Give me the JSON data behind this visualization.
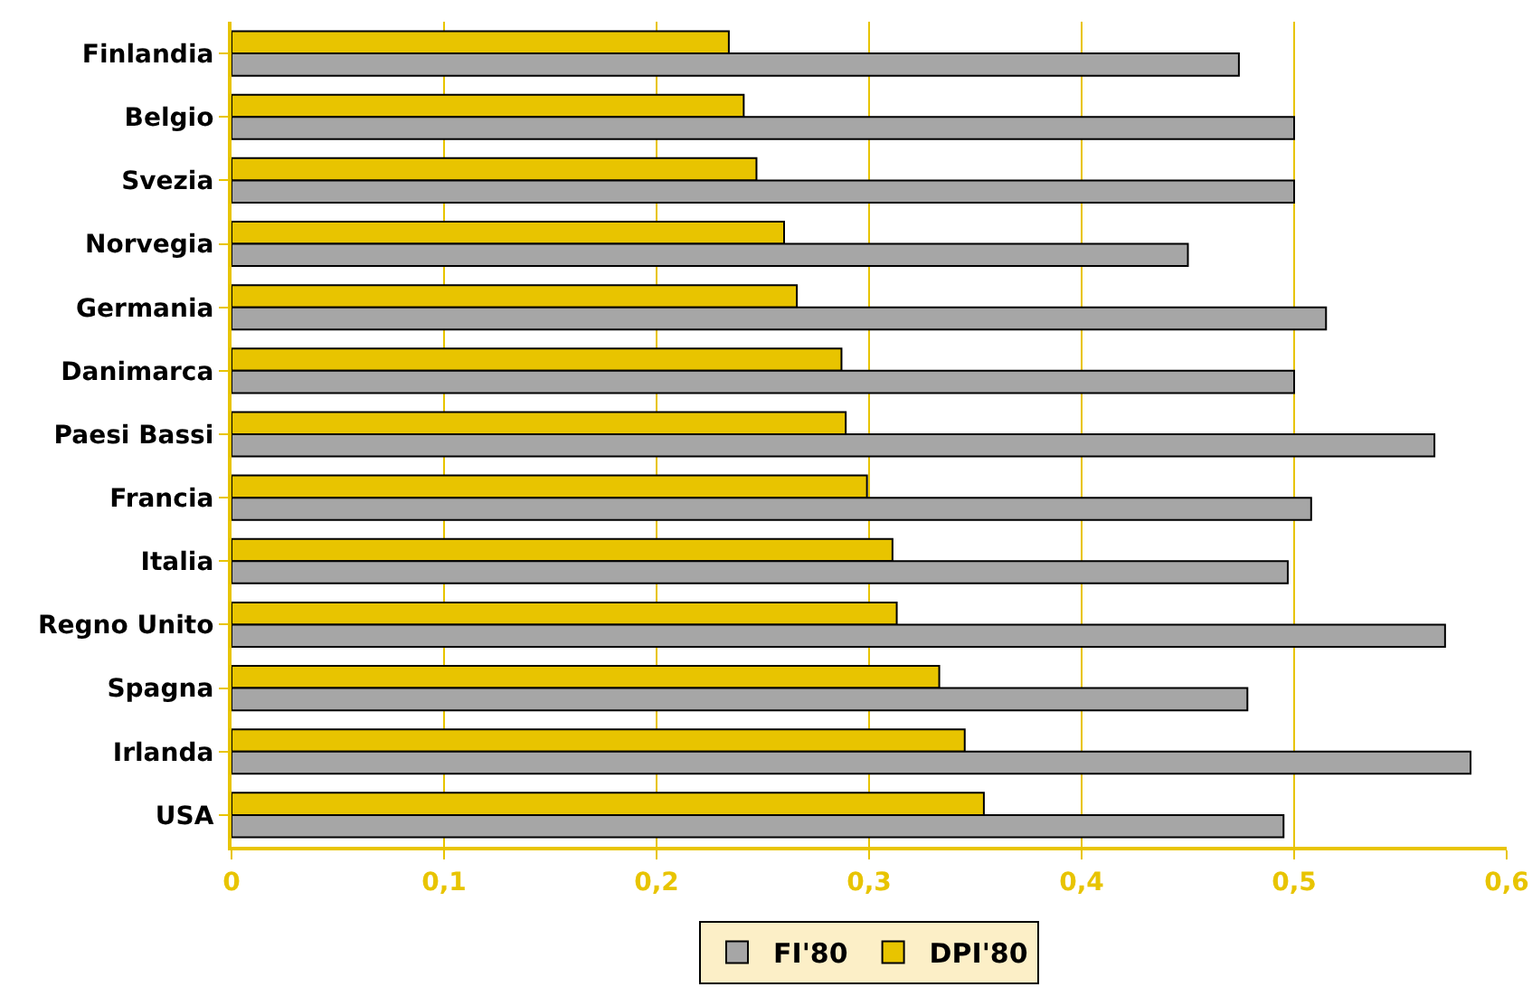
{
  "chart_data": {
    "type": "bar",
    "orientation": "horizontal",
    "categories": [
      "Finlandia",
      "Belgio",
      "Svezia",
      "Norvegia",
      "Germania",
      "Danimarca",
      "Paesi Bassi",
      "Francia",
      "Italia",
      "Regno Unito",
      "Spagna",
      "Irlanda",
      "USA"
    ],
    "series": [
      {
        "name": "FI'80",
        "color": "#a6a6a6",
        "values": [
          0.474,
          0.5,
          0.5,
          0.45,
          0.515,
          0.5,
          0.566,
          0.508,
          0.497,
          0.571,
          0.478,
          0.583,
          0.495
        ]
      },
      {
        "name": "DPI'80",
        "color": "#e8c400",
        "values": [
          0.234,
          0.241,
          0.247,
          0.26,
          0.266,
          0.287,
          0.289,
          0.299,
          0.311,
          0.313,
          0.333,
          0.345,
          0.354
        ]
      }
    ],
    "xlim": [
      0,
      0.6
    ],
    "xticks": [
      {
        "value": 0,
        "label": "0"
      },
      {
        "value": 0.1,
        "label": "0,1"
      },
      {
        "value": 0.2,
        "label": "0,2"
      },
      {
        "value": 0.3,
        "label": "0,3"
      },
      {
        "value": 0.4,
        "label": "0,4"
      },
      {
        "value": 0.5,
        "label": "0,5"
      },
      {
        "value": 0.6,
        "label": "0,6"
      }
    ],
    "grid": "x",
    "legend": "bottom"
  }
}
